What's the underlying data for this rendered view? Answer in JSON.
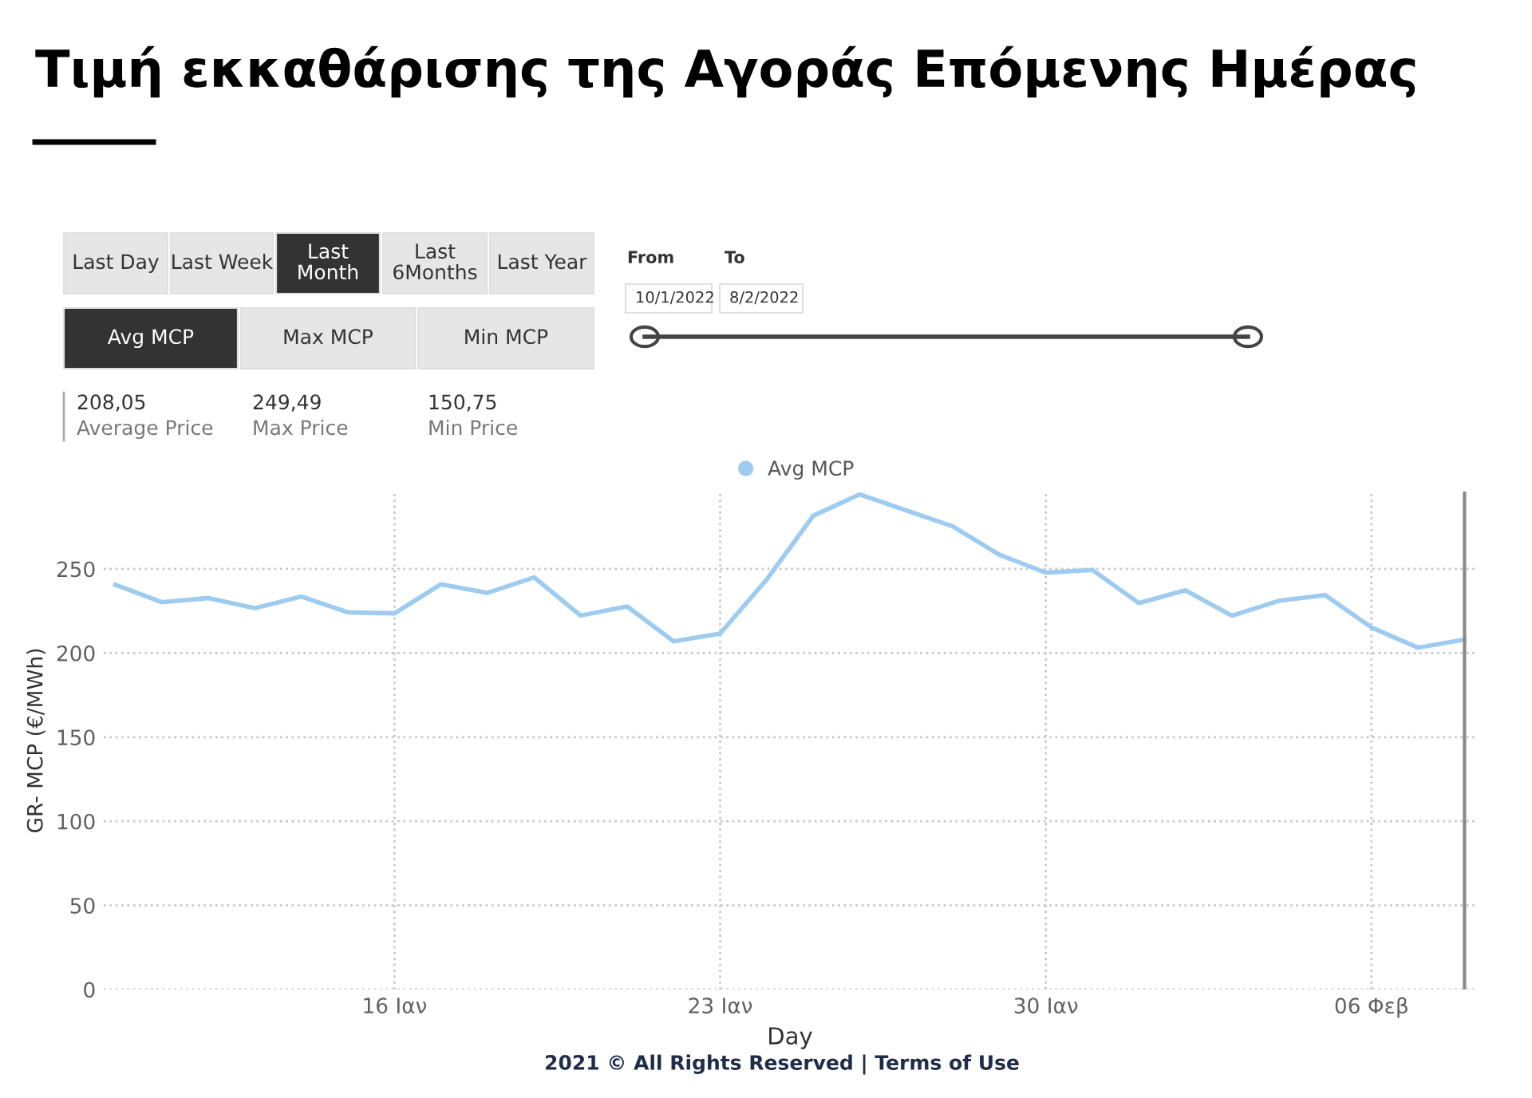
{
  "chart_data": {
    "type": "line",
    "title": "Τιμή εκκαθάρισης της Αγοράς Επόμενης Ημέρας",
    "xlabel": "Day",
    "ylabel": "GR- MCP (€/MWh)",
    "x": [
      "2022-01-10",
      "2022-01-11",
      "2022-01-12",
      "2022-01-13",
      "2022-01-14",
      "2022-01-15",
      "2022-01-16",
      "2022-01-17",
      "2022-01-18",
      "2022-01-19",
      "2022-01-20",
      "2022-01-21",
      "2022-01-22",
      "2022-01-23",
      "2022-01-24",
      "2022-01-25",
      "2022-01-26",
      "2022-01-27",
      "2022-01-28",
      "2022-01-29",
      "2022-01-30",
      "2022-01-31",
      "2022-02-01",
      "2022-02-02",
      "2022-02-03",
      "2022-02-04",
      "2022-02-05",
      "2022-02-06",
      "2022-02-07",
      "2022-02-08"
    ],
    "series": [
      {
        "name": "Avg MCP",
        "color": "#9ecbf0",
        "values": [
          240.6,
          230.2,
          232.7,
          226.7,
          233.6,
          224.2,
          223.6,
          240.9,
          235.8,
          245,
          222.3,
          227.7,
          206.9,
          211.6,
          243.7,
          281.6,
          294.3,
          284.8,
          275.3,
          258.5,
          247.8,
          249.4,
          229.7,
          237.3,
          222.2,
          231,
          234.5,
          215.2,
          203.2,
          208
        ]
      }
    ],
    "xlim": [
      "2022-01-09T18:00",
      "2022-02-08T06:00"
    ],
    "xticks": [
      {
        "value": "2022-01-16",
        "label": "16 Ιαν"
      },
      {
        "value": "2022-01-23",
        "label": "23 Ιαν"
      },
      {
        "value": "2022-01-30",
        "label": "30 Ιαν"
      },
      {
        "value": "2022-02-06",
        "label": "06 Φεβ"
      }
    ],
    "ylim": [
      0,
      296
    ],
    "yticks": [
      0,
      50,
      100,
      150,
      200,
      250
    ],
    "grid": true,
    "legend": "top",
    "marker": "none",
    "line_style": "solid",
    "ref_lines": [
      {
        "axis": "x",
        "value": "2022-02-08",
        "label": null,
        "color": "#8a8a8a"
      }
    ],
    "annotations": [
      "Last Day",
      "Last Week",
      "Last\nMonth",
      "Last\n6Months",
      "Last Year",
      "Avg MCP",
      "Max MCP",
      "Min MCP",
      "From",
      "To",
      "10/1/2022",
      "8/2/2022",
      "208,05",
      "Average Price",
      "249,49",
      "Max Price",
      "150,75",
      "Min Price",
      "2021 © All Rights Reserved | Terms of Use"
    ]
  }
}
